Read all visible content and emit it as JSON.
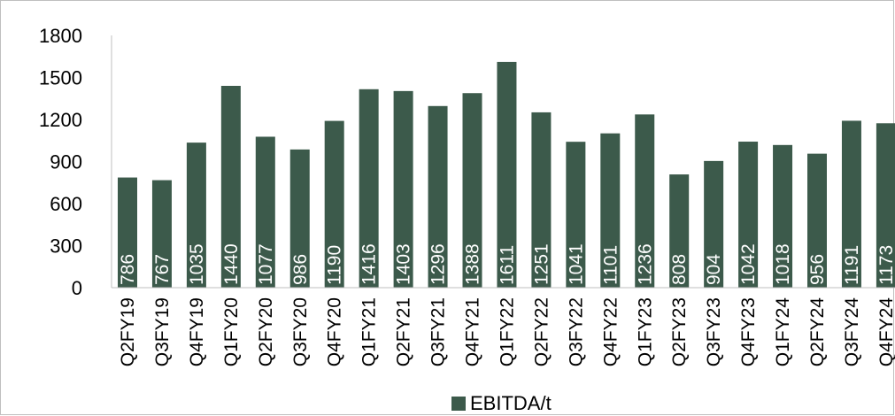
{
  "chart_data": {
    "type": "bar",
    "categories": [
      "Q2FY19",
      "Q3FY19",
      "Q4FY19",
      "Q1FY20",
      "Q2FY20",
      "Q3FY20",
      "Q4FY20",
      "Q1FY21",
      "Q2FY21",
      "Q3FY21",
      "Q4FY21",
      "Q1FY22",
      "Q2FY22",
      "Q3FY22",
      "Q4FY22",
      "Q1FY23",
      "Q2FY23",
      "Q3FY23",
      "Q4FY23",
      "Q1FY24",
      "Q2FY24",
      "Q3FY24",
      "Q4FY24"
    ],
    "series": [
      {
        "name": "EBITDA/t",
        "values": [
          786,
          767,
          1035,
          1440,
          1077,
          986,
          1190,
          1416,
          1403,
          1296,
          1388,
          1611,
          1251,
          1041,
          1101,
          1236,
          808,
          904,
          1042,
          1018,
          956,
          1191,
          1173
        ]
      }
    ],
    "yticks": [
      "0",
      "300",
      "600",
      "900",
      "1200",
      "1500",
      "1800"
    ],
    "ylim": [
      0,
      1800
    ],
    "grid": false,
    "legend_position": "bottom",
    "bar_color": "#3c5a4b",
    "label_color": "#ffffff"
  },
  "legend": {
    "label": "EBITDA/t"
  }
}
